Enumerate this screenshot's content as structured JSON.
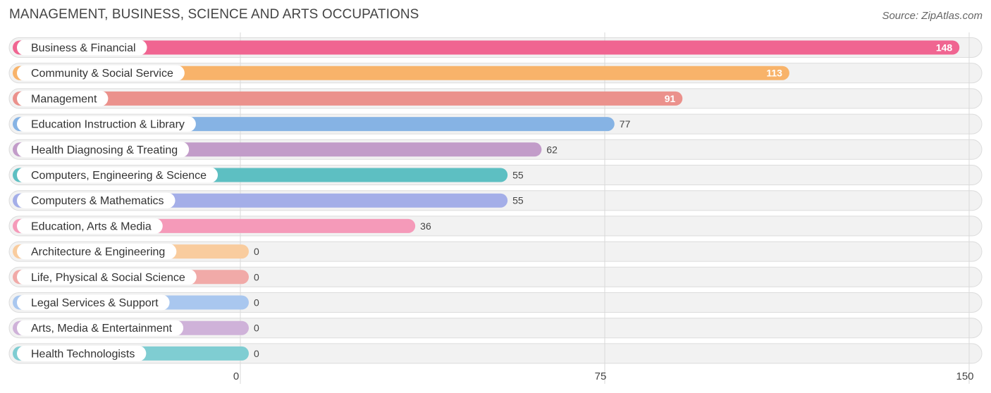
{
  "chart_data": {
    "type": "bar",
    "orientation": "horizontal",
    "title": "MANAGEMENT, BUSINESS, SCIENCE AND ARTS OCCUPATIONS",
    "source": "Source: ZipAtlas.com",
    "xlim": [
      0,
      150
    ],
    "xticks": [
      0,
      75,
      150
    ],
    "grid": true,
    "categories": [
      "Business & Financial",
      "Community & Social Service",
      "Management",
      "Education Instruction & Library",
      "Health Diagnosing & Treating",
      "Computers, Engineering & Science",
      "Computers & Mathematics",
      "Education, Arts & Media",
      "Architecture & Engineering",
      "Life, Physical & Social Science",
      "Legal Services & Support",
      "Arts, Media & Entertainment",
      "Health Technologists"
    ],
    "values": [
      148,
      113,
      91,
      77,
      62,
      55,
      55,
      36,
      0,
      0,
      0,
      0,
      0
    ],
    "colors": [
      "#f06591",
      "#f8b36a",
      "#eb918c",
      "#86b3e4",
      "#c29cc9",
      "#5dbfc2",
      "#a4aee8",
      "#f59ab9",
      "#f9cc9e",
      "#f1aaa8",
      "#a9c7ef",
      "#cfb2d9",
      "#7fcdd2"
    ]
  }
}
